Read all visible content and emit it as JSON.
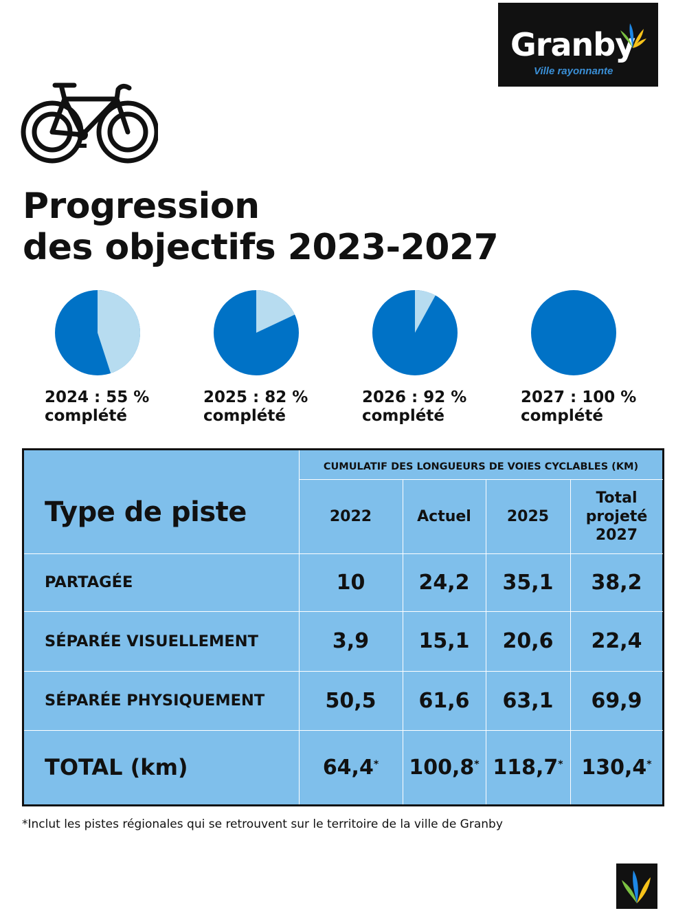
{
  "brand": {
    "name": "Granby",
    "tagline": "Ville rayonnante",
    "colors": {
      "dark_blue": "#0072c6",
      "light_blue": "#b7dcf0",
      "table_blue": "#7fbfeb",
      "black": "#111111"
    }
  },
  "icons": {
    "bike": "bicycle-icon",
    "logo": "granby-flame-icon"
  },
  "title": {
    "line1": "Progression",
    "line2": "des objectifs 2023-2027"
  },
  "chart_data": {
    "type": "pie",
    "charts": [
      {
        "year": "2024",
        "completed_pct": 55,
        "label_line1": "2024 : 55 %",
        "label_line2": "complété"
      },
      {
        "year": "2025",
        "completed_pct": 82,
        "label_line1": "2025 : 82 %",
        "label_line2": "complété"
      },
      {
        "year": "2026",
        "completed_pct": 92,
        "label_line1": "2026 : 92 %",
        "label_line2": "complété"
      },
      {
        "year": "2027",
        "completed_pct": 100,
        "label_line1": "2027 : 100 %",
        "label_line2": "complété"
      }
    ],
    "colors": {
      "completed": "#0072c6",
      "remaining": "#b7dcf0"
    }
  },
  "table": {
    "row_header": "Type de piste",
    "group_header": "CUMULATIF DES LONGUEURS DE VOIES CYCLABLES (KM)",
    "columns": [
      {
        "lines": [
          "2022"
        ]
      },
      {
        "lines": [
          "Actuel"
        ]
      },
      {
        "lines": [
          "2025"
        ]
      },
      {
        "lines": [
          "Total",
          "projeté",
          "2027"
        ]
      }
    ],
    "rows": [
      {
        "label": "PARTAGÉE",
        "values": [
          "10",
          "24,2",
          "35,1",
          "38,2"
        ]
      },
      {
        "label": "SÉPARÉE VISUELLEMENT",
        "values": [
          "3,9",
          "15,1",
          "20,6",
          "22,4"
        ]
      },
      {
        "label": "SÉPARÉE PHYSIQUEMENT",
        "values": [
          "50,5",
          "61,6",
          "63,1",
          "69,9"
        ]
      }
    ],
    "total": {
      "label": "TOTAL (km)",
      "values": [
        "64,4",
        "100,8",
        "118,7",
        "130,4"
      ],
      "marker": "*"
    }
  },
  "footnote": "*Inclut les pistes régionales qui se retrouvent sur le territoire de la ville de Granby"
}
